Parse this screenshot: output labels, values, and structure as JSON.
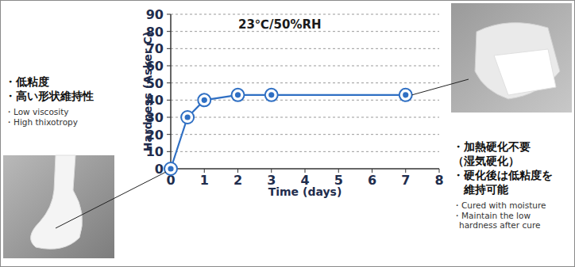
{
  "chart_data": {
    "type": "line",
    "title": "23℃/50%RH",
    "x_label": "Time (days)",
    "y_label": "Hardness (Asker C)",
    "x": [
      0,
      0.5,
      1,
      2,
      3,
      7
    ],
    "series": [
      {
        "name": "Hardness",
        "color": "#2f6fc3",
        "values": [
          0,
          30,
          40,
          43,
          43,
          43
        ],
        "marker": "circle-dot",
        "line_style": "solid"
      }
    ],
    "xlim": [
      0,
      8
    ],
    "ylim": [
      0,
      90
    ],
    "xticks": [
      0,
      1,
      2,
      3,
      4,
      5,
      6,
      7,
      8
    ],
    "yticks": [
      0,
      10,
      20,
      30,
      40,
      50,
      60,
      70,
      80,
      90
    ],
    "grid": true,
    "annotations": [
      {
        "lines": [
          "・低粘度",
          "・高い形状維持性"
        ],
        "notes": [
          "・Low viscosity",
          "・High thixotropy"
        ]
      },
      {
        "lines": [
          "・加熱硬化不要",
          "（湿気硬化）",
          "・硬化後は低粘度を",
          "維持可能"
        ],
        "notes": [
          "・Cured with moisture",
          "・Maintain the low",
          "hardness after cure"
        ]
      }
    ]
  }
}
